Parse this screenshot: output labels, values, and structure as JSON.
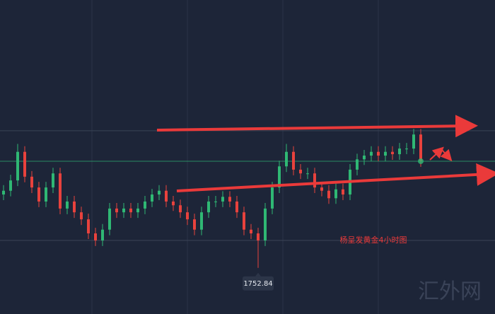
{
  "chart_data": {
    "type": "candlestick",
    "ylim": [
      1743,
      1810
    ],
    "up_color": "#2fb874",
    "down_color": "#e8423d",
    "price_line_color": "#2fb874",
    "grid_levels": [
      1782.1,
      1758.7
    ],
    "open": [
      1768.5,
      1769.3,
      1771.5,
      1777.6,
      1772.3,
      1770.0,
      1767.0,
      1770.0,
      1773.0,
      1765.5,
      1767.0,
      1764.7,
      1763.2,
      1760.2,
      1758.7,
      1761.0,
      1765.5,
      1764.7,
      1765.5,
      1764.7,
      1765.5,
      1767.0,
      1768.5,
      1769.3,
      1767.0,
      1766.2,
      1764.7,
      1763.2,
      1761.0,
      1764.7,
      1767.0,
      1767.0,
      1768.0,
      1767.0,
      1764.7,
      1761.0,
      1760.2,
      1758.7,
      1765.5,
      1770.0,
      1774.5,
      1777.6,
      1773.8,
      1773.0,
      1773.0,
      1770.0,
      1769.3,
      1767.7,
      1769.6,
      1768.5,
      1773.8,
      1776.0,
      1776.8,
      1777.6,
      1776.8,
      1777.6,
      1777.1,
      1778.3,
      1778.3,
      1781.3
    ],
    "high": [
      1770.5,
      1772.7,
      1779.3,
      1778.8,
      1773.5,
      1771.2,
      1771.2,
      1774.2,
      1774.2,
      1768.2,
      1768.2,
      1765.9,
      1764.4,
      1761.4,
      1762.2,
      1766.7,
      1766.7,
      1766.7,
      1766.7,
      1766.7,
      1768.2,
      1769.7,
      1770.5,
      1770.5,
      1768.2,
      1767.4,
      1765.9,
      1764.4,
      1765.9,
      1768.2,
      1768.2,
      1769.2,
      1769.2,
      1768.2,
      1765.9,
      1762.2,
      1761.4,
      1766.7,
      1771.2,
      1775.7,
      1779.3,
      1778.8,
      1775.0,
      1774.2,
      1774.2,
      1771.2,
      1770.5,
      1770.8,
      1770.8,
      1775.0,
      1777.2,
      1778.0,
      1778.8,
      1778.8,
      1778.8,
      1778.8,
      1779.5,
      1779.5,
      1782.5,
      1782.5
    ],
    "low": [
      1767.3,
      1768.1,
      1770.3,
      1771.1,
      1768.8,
      1765.8,
      1765.8,
      1768.8,
      1764.3,
      1764.3,
      1763.5,
      1762.0,
      1759.0,
      1757.5,
      1757.5,
      1759.8,
      1763.5,
      1763.5,
      1763.5,
      1763.5,
      1764.3,
      1765.8,
      1767.3,
      1765.8,
      1765.0,
      1763.5,
      1762.0,
      1759.8,
      1759.8,
      1763.5,
      1765.8,
      1765.8,
      1765.8,
      1763.5,
      1759.8,
      1759.0,
      1752.84,
      1757.5,
      1764.3,
      1768.8,
      1773.3,
      1772.6,
      1771.8,
      1771.8,
      1768.8,
      1768.1,
      1766.5,
      1766.5,
      1767.3,
      1767.3,
      1772.6,
      1774.8,
      1775.6,
      1775.6,
      1775.6,
      1775.9,
      1775.9,
      1777.1,
      1777.1,
      1774.4
    ],
    "close": [
      1769.3,
      1771.5,
      1777.6,
      1772.3,
      1770.0,
      1767.0,
      1770.0,
      1773.0,
      1765.5,
      1767.0,
      1764.7,
      1763.2,
      1760.2,
      1758.7,
      1761.0,
      1765.5,
      1764.7,
      1765.5,
      1764.7,
      1765.5,
      1767.0,
      1768.5,
      1769.3,
      1767.0,
      1766.2,
      1764.7,
      1763.2,
      1761.0,
      1764.7,
      1767.0,
      1767.0,
      1768.0,
      1767.0,
      1764.7,
      1761.0,
      1760.2,
      1758.7,
      1765.5,
      1770.0,
      1774.5,
      1777.6,
      1773.8,
      1773.0,
      1773.0,
      1770.0,
      1769.3,
      1767.7,
      1769.6,
      1768.5,
      1773.8,
      1776.0,
      1776.8,
      1777.6,
      1776.8,
      1777.6,
      1777.1,
      1778.3,
      1778.3,
      1781.3,
      1775.6
    ],
    "annotation": {
      "text": "1752.84",
      "value": 1752.84
    },
    "caption": "杨呈发黄金4小时图",
    "watermark": "汇外网"
  }
}
